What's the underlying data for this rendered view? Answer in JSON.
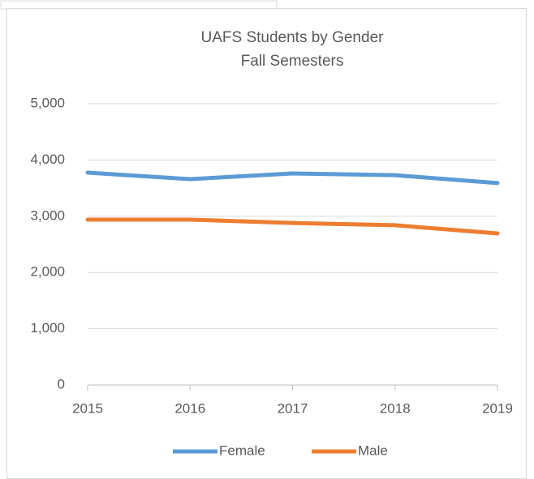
{
  "chart_data": {
    "type": "line",
    "title": "UAFS Students by Gender",
    "subtitle": "Fall Semesters",
    "x": [
      2015,
      2016,
      2017,
      2018,
      2019
    ],
    "series": [
      {
        "name": "Female",
        "color": "#5b9bd5",
        "values": [
          3775,
          3660,
          3760,
          3730,
          3590
        ]
      },
      {
        "name": "Male",
        "color": "#ed7d31",
        "values": [
          2940,
          2940,
          2880,
          2840,
          2695
        ]
      }
    ],
    "xlim": [
      2015,
      2019
    ],
    "xticks": [
      2015,
      2016,
      2017,
      2018,
      2019
    ],
    "ylim": [
      0,
      5000
    ],
    "yticks": [
      0,
      {
        "value": 1000,
        "label": "1,000"
      },
      {
        "value": 2000,
        "label": "2,000"
      },
      {
        "value": 3000,
        "label": "3,000"
      },
      {
        "value": 4000,
        "label": "4,000"
      },
      {
        "value": 5000,
        "label": "5,000"
      }
    ],
    "grid": true,
    "legend": "bottom"
  }
}
